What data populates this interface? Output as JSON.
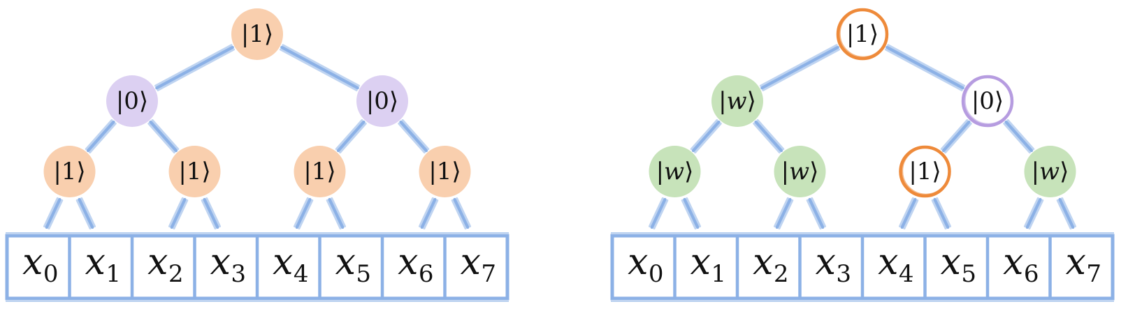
{
  "colors": {
    "orange_fill": "#f9cfae",
    "purple_fill": "#dcd0f2",
    "green_fill": "#c7e3ba",
    "orange_ring": "#ee8a3a",
    "purple_ring": "#b69ce0",
    "edge_blue": "#8cb1e6"
  },
  "trees": [
    {
      "root": {
        "label": "|1⟩",
        "style": "orange-filled"
      },
      "level1": [
        {
          "label": "|0⟩",
          "style": "purple-filled"
        },
        {
          "label": "|0⟩",
          "style": "purple-filled"
        }
      ],
      "level2": [
        {
          "label": "|1⟩",
          "style": "orange-filled"
        },
        {
          "label": "|1⟩",
          "style": "orange-filled"
        },
        {
          "label": "|1⟩",
          "style": "orange-filled"
        },
        {
          "label": "|1⟩",
          "style": "orange-filled"
        }
      ],
      "cells": [
        {
          "var": "x",
          "sub": "0"
        },
        {
          "var": "x",
          "sub": "1"
        },
        {
          "var": "x",
          "sub": "2"
        },
        {
          "var": "x",
          "sub": "3"
        },
        {
          "var": "x",
          "sub": "4"
        },
        {
          "var": "x",
          "sub": "5"
        },
        {
          "var": "x",
          "sub": "6"
        },
        {
          "var": "x",
          "sub": "7"
        }
      ]
    },
    {
      "root": {
        "label": "|1⟩",
        "style": "orange-ring"
      },
      "level1": [
        {
          "label": "|w⟩",
          "style": "green-filled"
        },
        {
          "label": "|0⟩",
          "style": "purple-ring"
        }
      ],
      "level2": [
        {
          "label": "|w⟩",
          "style": "green-filled"
        },
        {
          "label": "|w⟩",
          "style": "green-filled"
        },
        {
          "label": "|1⟩",
          "style": "orange-ring"
        },
        {
          "label": "|w⟩",
          "style": "green-filled"
        }
      ],
      "cells": [
        {
          "var": "x",
          "sub": "0"
        },
        {
          "var": "x",
          "sub": "1"
        },
        {
          "var": "x",
          "sub": "2"
        },
        {
          "var": "x",
          "sub": "3"
        },
        {
          "var": "x",
          "sub": "4"
        },
        {
          "var": "x",
          "sub": "5"
        },
        {
          "var": "x",
          "sub": "6"
        },
        {
          "var": "x",
          "sub": "7"
        }
      ]
    }
  ]
}
